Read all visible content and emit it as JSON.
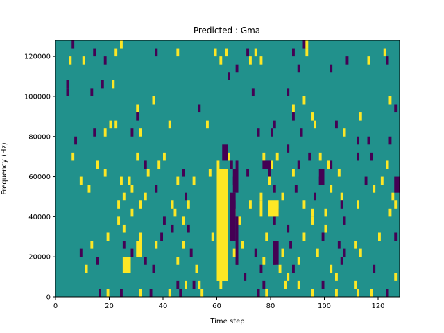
{
  "chart_data": {
    "type": "heatmap",
    "title": "Predicted : Gma",
    "xlabel": "Time step",
    "ylabel": "Frequency (Hz)",
    "xlim": [
      0,
      128
    ],
    "ylim": [
      0,
      128000
    ],
    "x_ticks": [
      0,
      20,
      40,
      60,
      80,
      100,
      120
    ],
    "x_tick_labels": [
      "0",
      "20",
      "40",
      "60",
      "80",
      "100",
      "120"
    ],
    "y_ticks": [
      0,
      20000,
      40000,
      60000,
      80000,
      100000,
      120000
    ],
    "y_tick_labels": [
      "0",
      "20000",
      "40000",
      "60000",
      "80000",
      "100000",
      "120000"
    ],
    "colormap": "viridis",
    "value_colors": {
      "-1": "#440154",
      "0": "#21918c",
      "1": "#fde725"
    },
    "background_value": 0,
    "n_time_steps": 128,
    "n_freq_bins": 32,
    "freq_bin_hz": 4000,
    "cells": [
      {
        "t": 6,
        "f": 31,
        "v": -1
      },
      {
        "t": 24,
        "f": 31,
        "v": 1
      },
      {
        "t": 92,
        "f": 31,
        "v": -1
      },
      {
        "t": 93,
        "f": 31,
        "v": 1
      },
      {
        "t": 10,
        "f": 29,
        "v": 1
      },
      {
        "t": 14,
        "f": 30,
        "v": -1
      },
      {
        "t": 22,
        "f": 30,
        "v": 1
      },
      {
        "t": 37,
        "f": 30,
        "v": -1
      },
      {
        "t": 45,
        "f": 30,
        "v": 1
      },
      {
        "t": 59,
        "f": 30,
        "v": 1
      },
      {
        "t": 63,
        "f": 30,
        "v": 1
      },
      {
        "t": 71,
        "f": 30,
        "v": -1
      },
      {
        "t": 74,
        "f": 30,
        "v": 1
      },
      {
        "t": 88,
        "f": 30,
        "v": -1
      },
      {
        "t": 93,
        "f": 30,
        "v": 1
      },
      {
        "t": 122,
        "f": 30,
        "v": 1
      },
      {
        "t": 5,
        "f": 29,
        "v": 1
      },
      {
        "t": 18,
        "f": 29,
        "v": -1
      },
      {
        "t": 61,
        "f": 29,
        "v": 1
      },
      {
        "t": 72,
        "f": 29,
        "v": 1
      },
      {
        "t": 76,
        "f": 29,
        "v": 1
      },
      {
        "t": 108,
        "f": 29,
        "v": -1
      },
      {
        "t": 116,
        "f": 29,
        "v": 1
      },
      {
        "t": 123,
        "f": 29,
        "v": -1
      },
      {
        "t": 67,
        "f": 28,
        "v": -1
      },
      {
        "t": 90,
        "f": 28,
        "v": -1
      },
      {
        "t": 102,
        "f": 28,
        "v": -1
      },
      {
        "t": 4,
        "f": 26,
        "v": -1
      },
      {
        "t": 17,
        "f": 26,
        "v": -1
      },
      {
        "t": 21,
        "f": 26,
        "v": 1
      },
      {
        "t": 64,
        "f": 27,
        "v": -1
      },
      {
        "t": 4,
        "f": 25,
        "v": -1
      },
      {
        "t": 13,
        "f": 25,
        "v": -1
      },
      {
        "t": 73,
        "f": 25,
        "v": -1
      },
      {
        "t": 86,
        "f": 25,
        "v": -1
      },
      {
        "t": 36,
        "f": 24,
        "v": 1
      },
      {
        "t": 92,
        "f": 24,
        "v": 1
      },
      {
        "t": 124,
        "f": 24,
        "v": 1
      },
      {
        "t": 30,
        "f": 23,
        "v": 1
      },
      {
        "t": 53,
        "f": 23,
        "v": -1
      },
      {
        "t": 88,
        "f": 23,
        "v": 1
      },
      {
        "t": 126,
        "f": 23,
        "v": -1
      },
      {
        "t": 30,
        "f": 22,
        "v": -1
      },
      {
        "t": 88,
        "f": 22,
        "v": -1
      },
      {
        "t": 95,
        "f": 22,
        "v": 1
      },
      {
        "t": 113,
        "f": 22,
        "v": 1
      },
      {
        "t": 20,
        "f": 21,
        "v": 1
      },
      {
        "t": 22,
        "f": 21,
        "v": 1
      },
      {
        "t": 42,
        "f": 21,
        "v": 1
      },
      {
        "t": 56,
        "f": 21,
        "v": 1
      },
      {
        "t": 81,
        "f": 21,
        "v": -1
      },
      {
        "t": 96,
        "f": 21,
        "v": 1
      },
      {
        "t": 104,
        "f": 21,
        "v": -1
      },
      {
        "t": 14,
        "f": 20,
        "v": -1
      },
      {
        "t": 18,
        "f": 20,
        "v": 1
      },
      {
        "t": 28,
        "f": 20,
        "v": -1
      },
      {
        "t": 31,
        "f": 20,
        "v": 1
      },
      {
        "t": 75,
        "f": 20,
        "v": -1
      },
      {
        "t": 80,
        "f": 20,
        "v": -1
      },
      {
        "t": 91,
        "f": 20,
        "v": -1
      },
      {
        "t": 107,
        "f": 20,
        "v": 1
      },
      {
        "t": 7,
        "f": 19,
        "v": -1
      },
      {
        "t": 112,
        "f": 19,
        "v": -1
      },
      {
        "t": 116,
        "f": 19,
        "v": -1
      },
      {
        "t": 124,
        "f": 19,
        "v": -1
      },
      {
        "t": 86,
        "f": 18,
        "v": -1
      },
      {
        "t": 6,
        "f": 17,
        "v": 1
      },
      {
        "t": 30,
        "f": 17,
        "v": 1
      },
      {
        "t": 40,
        "f": 17,
        "v": 1
      },
      {
        "t": 64,
        "f": 17,
        "v": 1
      },
      {
        "t": 77,
        "f": 17,
        "v": 1
      },
      {
        "t": 82,
        "f": 17,
        "v": 1
      },
      {
        "t": 94,
        "f": 17,
        "v": -1
      },
      {
        "t": 98,
        "f": 17,
        "v": 1
      },
      {
        "t": 112,
        "f": 17,
        "v": -1
      },
      {
        "t": 117,
        "f": 17,
        "v": -1
      },
      {
        "t": 15,
        "f": 16,
        "v": 1
      },
      {
        "t": 33,
        "f": 16,
        "v": -1
      },
      {
        "t": 38,
        "f": 16,
        "v": 1
      },
      {
        "t": 60,
        "f": 16,
        "v": 1
      },
      {
        "t": 65,
        "f": 16,
        "v": -1
      },
      {
        "t": 67,
        "f": 16,
        "v": -1
      },
      {
        "t": 80,
        "f": 16,
        "v": 1
      },
      {
        "t": 90,
        "f": 16,
        "v": -1
      },
      {
        "t": 101,
        "f": 16,
        "v": 1
      },
      {
        "t": 102,
        "f": 16,
        "v": -1
      },
      {
        "t": 123,
        "f": 16,
        "v": 1
      },
      {
        "t": 18,
        "f": 15,
        "v": 1
      },
      {
        "t": 34,
        "f": 15,
        "v": 1
      },
      {
        "t": 47,
        "f": 15,
        "v": -1
      },
      {
        "t": 57,
        "f": 15,
        "v": 1
      },
      {
        "t": 71,
        "f": 15,
        "v": -1
      },
      {
        "t": 79,
        "f": 15,
        "v": -1
      },
      {
        "t": 88,
        "f": 15,
        "v": 1
      },
      {
        "t": 105,
        "f": 15,
        "v": 1
      },
      {
        "t": 9,
        "f": 14,
        "v": 1
      },
      {
        "t": 24,
        "f": 14,
        "v": 1
      },
      {
        "t": 27,
        "f": 14,
        "v": 1
      },
      {
        "t": 45,
        "f": 14,
        "v": 1
      },
      {
        "t": 51,
        "f": 14,
        "v": 1
      },
      {
        "t": 66,
        "f": 14,
        "v": -1
      },
      {
        "t": 79,
        "f": 14,
        "v": 1
      },
      {
        "t": 98,
        "f": 14,
        "v": -1
      },
      {
        "t": 115,
        "f": 14,
        "v": -1
      },
      {
        "t": 121,
        "f": 14,
        "v": 1
      },
      {
        "t": 12,
        "f": 13,
        "v": 1
      },
      {
        "t": 28,
        "f": 13,
        "v": 1
      },
      {
        "t": 37,
        "f": 13,
        "v": -1
      },
      {
        "t": 63,
        "f": 13,
        "v": -1
      },
      {
        "t": 81,
        "f": 13,
        "v": -1
      },
      {
        "t": 89,
        "f": 13,
        "v": -1
      },
      {
        "t": 102,
        "f": 13,
        "v": 1
      },
      {
        "t": 118,
        "f": 13,
        "v": 1
      },
      {
        "t": 25,
        "f": 12,
        "v": 1
      },
      {
        "t": 33,
        "f": 12,
        "v": 1
      },
      {
        "t": 48,
        "f": 12,
        "v": -1
      },
      {
        "t": 76,
        "f": 12,
        "v": 1
      },
      {
        "t": 84,
        "f": 12,
        "v": 1
      },
      {
        "t": 96,
        "f": 12,
        "v": -1
      },
      {
        "t": 106,
        "f": 12,
        "v": 1
      },
      {
        "t": 125,
        "f": 12,
        "v": 1
      },
      {
        "t": 23,
        "f": 11,
        "v": 1
      },
      {
        "t": 31,
        "f": 11,
        "v": 1
      },
      {
        "t": 43,
        "f": 11,
        "v": 1
      },
      {
        "t": 49,
        "f": 11,
        "v": 1
      },
      {
        "t": 66,
        "f": 11,
        "v": -1
      },
      {
        "t": 72,
        "f": 11,
        "v": 1
      },
      {
        "t": 92,
        "f": 11,
        "v": 1
      },
      {
        "t": 106,
        "f": 11,
        "v": -1
      },
      {
        "t": 112,
        "f": 11,
        "v": 1
      },
      {
        "t": 126,
        "f": 11,
        "v": 1
      },
      {
        "t": 28,
        "f": 10,
        "v": 1
      },
      {
        "t": 44,
        "f": 10,
        "v": 1
      },
      {
        "t": 66,
        "f": 10,
        "v": 1
      },
      {
        "t": 82,
        "f": 10,
        "v": -1
      },
      {
        "t": 95,
        "f": 10,
        "v": 1
      },
      {
        "t": 100,
        "f": 10,
        "v": 1
      },
      {
        "t": 124,
        "f": 10,
        "v": 1
      },
      {
        "t": 23,
        "f": 9,
        "v": 1
      },
      {
        "t": 40,
        "f": 9,
        "v": -1
      },
      {
        "t": 47,
        "f": 9,
        "v": 1
      },
      {
        "t": 68,
        "f": 9,
        "v": 1
      },
      {
        "t": 81,
        "f": 9,
        "v": -1
      },
      {
        "t": 95,
        "f": 9,
        "v": 1
      },
      {
        "t": 107,
        "f": 9,
        "v": -1
      },
      {
        "t": 25,
        "f": 8,
        "v": 1
      },
      {
        "t": 43,
        "f": 8,
        "v": -1
      },
      {
        "t": 49,
        "f": 8,
        "v": -1
      },
      {
        "t": 65,
        "f": 8,
        "v": -1
      },
      {
        "t": 86,
        "f": 8,
        "v": -1
      },
      {
        "t": 100,
        "f": 8,
        "v": 1
      },
      {
        "t": 19,
        "f": 7,
        "v": 1
      },
      {
        "t": 31,
        "f": 7,
        "v": 1
      },
      {
        "t": 39,
        "f": 7,
        "v": -1
      },
      {
        "t": 58,
        "f": 7,
        "v": 1
      },
      {
        "t": 65,
        "f": 7,
        "v": -1
      },
      {
        "t": 78,
        "f": 7,
        "v": 1
      },
      {
        "t": 92,
        "f": 7,
        "v": 1
      },
      {
        "t": 99,
        "f": 7,
        "v": -1
      },
      {
        "t": 120,
        "f": 7,
        "v": 1
      },
      {
        "t": 126,
        "f": 7,
        "v": -1
      },
      {
        "t": 13,
        "f": 6,
        "v": 1
      },
      {
        "t": 25,
        "f": 6,
        "v": -1
      },
      {
        "t": 37,
        "f": 6,
        "v": 1
      },
      {
        "t": 47,
        "f": 6,
        "v": 1
      },
      {
        "t": 69,
        "f": 6,
        "v": 1
      },
      {
        "t": 87,
        "f": 6,
        "v": -1
      },
      {
        "t": 105,
        "f": 6,
        "v": -1
      },
      {
        "t": 111,
        "f": 6,
        "v": 1
      },
      {
        "t": 9,
        "f": 5,
        "v": -1
      },
      {
        "t": 28,
        "f": 5,
        "v": -1
      },
      {
        "t": 50,
        "f": 5,
        "v": -1
      },
      {
        "t": 66,
        "f": 5,
        "v": 1
      },
      {
        "t": 74,
        "f": 5,
        "v": -1
      },
      {
        "t": 84,
        "f": 5,
        "v": 1
      },
      {
        "t": 97,
        "f": 5,
        "v": 1
      },
      {
        "t": 107,
        "f": 5,
        "v": -1
      },
      {
        "t": 113,
        "f": 5,
        "v": 1
      },
      {
        "t": 15,
        "f": 4,
        "v": -1
      },
      {
        "t": 33,
        "f": 4,
        "v": -1
      },
      {
        "t": 45,
        "f": 4,
        "v": 1
      },
      {
        "t": 67,
        "f": 4,
        "v": -1
      },
      {
        "t": 77,
        "f": 4,
        "v": 1
      },
      {
        "t": 81,
        "f": 4,
        "v": -1
      },
      {
        "t": 90,
        "f": 4,
        "v": 1
      },
      {
        "t": 106,
        "f": 4,
        "v": -1
      },
      {
        "t": 11,
        "f": 3,
        "v": 1
      },
      {
        "t": 36,
        "f": 3,
        "v": -1
      },
      {
        "t": 52,
        "f": 3,
        "v": 1
      },
      {
        "t": 76,
        "f": 3,
        "v": -1
      },
      {
        "t": 83,
        "f": 3,
        "v": 1
      },
      {
        "t": 88,
        "f": 3,
        "v": -1
      },
      {
        "t": 102,
        "f": 3,
        "v": 1
      },
      {
        "t": 118,
        "f": 3,
        "v": -1
      },
      {
        "t": 70,
        "f": 2,
        "v": -1
      },
      {
        "t": 86,
        "f": 2,
        "v": 1
      },
      {
        "t": 104,
        "f": 2,
        "v": 1
      },
      {
        "t": 126,
        "f": 2,
        "v": 1
      },
      {
        "t": 45,
        "f": 1,
        "v": -1
      },
      {
        "t": 48,
        "f": 1,
        "v": 1
      },
      {
        "t": 51,
        "f": 1,
        "v": -1
      },
      {
        "t": 53,
        "f": 1,
        "v": 1
      },
      {
        "t": 77,
        "f": 1,
        "v": -1
      },
      {
        "t": 85,
        "f": 1,
        "v": 1
      },
      {
        "t": 90,
        "f": 1,
        "v": 1
      },
      {
        "t": 99,
        "f": 1,
        "v": -1
      },
      {
        "t": 111,
        "f": 1,
        "v": 1
      },
      {
        "t": 16,
        "f": 0,
        "v": -1
      },
      {
        "t": 19,
        "f": 0,
        "v": 1
      },
      {
        "t": 24,
        "f": 0,
        "v": -1
      },
      {
        "t": 31,
        "f": 0,
        "v": 1
      },
      {
        "t": 35,
        "f": 0,
        "v": -1
      },
      {
        "t": 42,
        "f": 0,
        "v": 1
      },
      {
        "t": 46,
        "f": 0,
        "v": -1
      },
      {
        "t": 54,
        "f": 0,
        "v": 1
      },
      {
        "t": 75,
        "f": 0,
        "v": -1
      },
      {
        "t": 78,
        "f": 0,
        "v": 1
      },
      {
        "t": 95,
        "f": 0,
        "v": 1
      },
      {
        "t": 104,
        "f": 0,
        "v": 1
      },
      {
        "t": 112,
        "f": 0,
        "v": 1
      },
      {
        "t": 117,
        "f": 0,
        "v": 1
      },
      {
        "t": 123,
        "f": 0,
        "v": -1
      }
    ],
    "blocks": [
      {
        "t0": 60,
        "t1": 64,
        "f0": 2,
        "f1": 15,
        "v": 1
      },
      {
        "t0": 60,
        "t1": 64,
        "f0": 2,
        "f1": 3,
        "v": 1
      },
      {
        "t0": 61,
        "t1": 62,
        "f0": 1,
        "f1": 1,
        "v": 1
      },
      {
        "t0": 66,
        "t1": 68,
        "f0": 13,
        "f1": 15,
        "v": -1
      },
      {
        "t0": 65,
        "t1": 67,
        "f0": 7,
        "f1": 12,
        "v": -1
      },
      {
        "t0": 67,
        "t1": 68,
        "f0": 4,
        "f1": 9,
        "v": -1
      },
      {
        "t0": 25,
        "t1": 28,
        "f0": 3,
        "f1": 4,
        "v": 1
      },
      {
        "t0": 30,
        "t1": 32,
        "f0": 5,
        "f1": 6,
        "v": 1
      },
      {
        "t0": 76,
        "t1": 77,
        "f0": 10,
        "f1": 11,
        "v": 1
      },
      {
        "t0": 79,
        "t1": 83,
        "f0": 10,
        "f1": 11,
        "v": 1
      },
      {
        "t0": 81,
        "t1": 83,
        "f0": 4,
        "f1": 6,
        "v": -1
      },
      {
        "t0": 77,
        "t1": 80,
        "f0": 16,
        "f1": 16,
        "v": -1
      },
      {
        "t0": 98,
        "t1": 100,
        "f0": 14,
        "f1": 15,
        "v": -1
      },
      {
        "t0": 126,
        "t1": 128,
        "f0": 13,
        "f1": 14,
        "v": -1
      },
      {
        "t0": 62,
        "t1": 64,
        "f0": 17,
        "f1": 18,
        "v": -1
      }
    ]
  }
}
